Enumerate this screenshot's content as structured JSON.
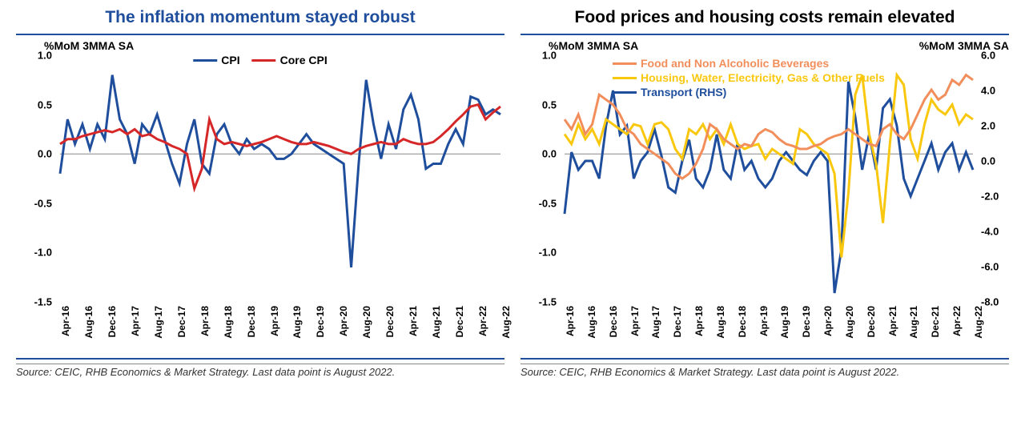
{
  "left": {
    "title": "The inflation momentum stayed robust",
    "title_color": "#1f4e9c",
    "ylabel": "%MoM 3MMA SA",
    "ylim": [
      -1.5,
      1.0
    ],
    "yticks": [
      -1.5,
      -1.0,
      -0.5,
      0.0,
      0.5,
      1.0
    ],
    "xticks": [
      "Apr-16",
      "Aug-16",
      "Dec-16",
      "Apr-17",
      "Aug-17",
      "Dec-17",
      "Apr-18",
      "Aug-18",
      "Dec-18",
      "Apr-19",
      "Aug-19",
      "Dec-19",
      "Apr-20",
      "Aug-20",
      "Dec-20",
      "Apr-21",
      "Aug-21",
      "Dec-21",
      "Apr-22",
      "Aug-22"
    ],
    "legend": [
      {
        "label": "CPI",
        "color": "#1f4e9c"
      },
      {
        "label": "Core CPI",
        "color": "#d62728"
      }
    ],
    "source": "Source: CEIC, RHB Economics & Market Strategy. Last data point is August 2022.",
    "series": {
      "cpi": {
        "color": "#1f4e9c",
        "values": [
          -0.2,
          0.35,
          0.1,
          0.3,
          0.05,
          0.3,
          0.15,
          0.8,
          0.35,
          0.2,
          -0.1,
          0.3,
          0.2,
          0.4,
          0.15,
          -0.1,
          -0.3,
          0.1,
          0.35,
          -0.1,
          -0.2,
          0.2,
          0.3,
          0.1,
          0.0,
          0.15,
          0.05,
          0.1,
          0.05,
          -0.05,
          -0.05,
          0.0,
          0.1,
          0.2,
          0.1,
          0.05,
          0.0,
          -0.05,
          -0.1,
          -1.15,
          -0.1,
          0.75,
          0.3,
          -0.05,
          0.3,
          0.05,
          0.45,
          0.6,
          0.35,
          -0.15,
          -0.1,
          -0.1,
          0.1,
          0.25,
          0.1,
          0.58,
          0.55,
          0.4,
          0.45,
          0.4
        ]
      },
      "core_cpi": {
        "color": "#d62728",
        "values": [
          0.1,
          0.15,
          0.15,
          0.18,
          0.2,
          0.22,
          0.24,
          0.22,
          0.25,
          0.2,
          0.25,
          0.18,
          0.2,
          0.15,
          0.12,
          0.08,
          0.05,
          0.0,
          -0.35,
          -0.15,
          0.35,
          0.15,
          0.1,
          0.12,
          0.1,
          0.08,
          0.1,
          0.12,
          0.15,
          0.18,
          0.15,
          0.12,
          0.1,
          0.1,
          0.12,
          0.1,
          0.08,
          0.05,
          0.02,
          0.0,
          0.05,
          0.08,
          0.1,
          0.12,
          0.1,
          0.1,
          0.15,
          0.12,
          0.1,
          0.1,
          0.12,
          0.18,
          0.25,
          0.33,
          0.4,
          0.48,
          0.5,
          0.35,
          0.42,
          0.48
        ]
      }
    }
  },
  "right": {
    "title": "Food prices and housing costs remain elevated",
    "title_color": "#000000",
    "ylabel_left": "%MoM 3MMA SA",
    "ylabel_right": "%MoM 3MMA SA",
    "ylim_left": [
      -1.5,
      1.0
    ],
    "yticks_left": [
      -1.5,
      -1.0,
      -0.5,
      0.0,
      0.5,
      1.0
    ],
    "ylim_right": [
      -8.0,
      6.0
    ],
    "yticks_right": [
      -8.0,
      -6.0,
      -4.0,
      -2.0,
      0.0,
      2.0,
      4.0,
      6.0
    ],
    "xticks": [
      "Apr-16",
      "Aug-16",
      "Dec-16",
      "Apr-17",
      "Aug-17",
      "Dec-17",
      "Apr-18",
      "Aug-18",
      "Dec-18",
      "Apr-19",
      "Aug-19",
      "Dec-19",
      "Apr-20",
      "Aug-20",
      "Dec-20",
      "Apr-21",
      "Aug-21",
      "Dec-21",
      "Apr-22",
      "Aug-22"
    ],
    "legend": [
      {
        "label": "Food and Non Alcoholic Beverages",
        "color": "#f28e5c"
      },
      {
        "label": "Housing, Water, Electricity, Gas & Other Fuels",
        "color": "#f9c80e"
      },
      {
        "label": "Transport (RHS)",
        "color": "#1f4e9c"
      }
    ],
    "source": "Source: CEIC, RHB Economics & Market Strategy. Last data point is August 2022.",
    "series": {
      "food": {
        "color": "#f28e5c",
        "axis": "left",
        "values": [
          0.35,
          0.25,
          0.4,
          0.2,
          0.3,
          0.6,
          0.55,
          0.5,
          0.4,
          0.25,
          0.2,
          0.1,
          0.05,
          0.0,
          -0.05,
          -0.1,
          -0.2,
          -0.25,
          -0.2,
          -0.1,
          0.05,
          0.3,
          0.25,
          0.15,
          0.1,
          0.05,
          0.1,
          0.08,
          0.2,
          0.25,
          0.22,
          0.15,
          0.1,
          0.08,
          0.05,
          0.05,
          0.08,
          0.1,
          0.15,
          0.18,
          0.2,
          0.25,
          0.2,
          0.15,
          0.1,
          0.08,
          0.25,
          0.3,
          0.2,
          0.15,
          0.25,
          0.4,
          0.55,
          0.65,
          0.55,
          0.6,
          0.75,
          0.7,
          0.8,
          0.75
        ]
      },
      "housing": {
        "color": "#f9c80e",
        "axis": "left",
        "values": [
          0.2,
          0.1,
          0.3,
          0.15,
          0.25,
          0.1,
          0.35,
          0.3,
          0.25,
          0.2,
          0.3,
          0.28,
          0.1,
          0.3,
          0.32,
          0.25,
          0.05,
          -0.05,
          0.25,
          0.2,
          0.3,
          0.15,
          0.25,
          0.1,
          0.3,
          0.1,
          0.05,
          0.08,
          0.1,
          -0.05,
          0.05,
          0.0,
          -0.05,
          -0.1,
          0.25,
          0.2,
          0.1,
          0.05,
          0.0,
          -0.2,
          -1.05,
          -0.4,
          0.6,
          0.8,
          0.2,
          -0.1,
          -0.7,
          0.1,
          0.8,
          0.7,
          0.15,
          -0.05,
          0.3,
          0.55,
          0.45,
          0.4,
          0.5,
          0.3,
          0.4,
          0.35
        ]
      },
      "transport": {
        "color": "#1f4e9c",
        "axis": "right",
        "values": [
          -3.0,
          0.5,
          -0.5,
          0.0,
          0.0,
          -1.0,
          2.0,
          4.0,
          1.5,
          2.0,
          -1.0,
          0.0,
          0.5,
          1.8,
          0.3,
          -1.5,
          -1.8,
          0.0,
          1.2,
          -1.0,
          -1.5,
          -0.5,
          1.5,
          -0.5,
          -1.0,
          1.0,
          -0.5,
          0.0,
          -1.0,
          -1.5,
          -1.0,
          0.0,
          0.5,
          0.0,
          -0.5,
          -0.8,
          0.0,
          0.5,
          0.0,
          -7.5,
          -5.0,
          4.5,
          2.5,
          -0.5,
          1.5,
          -0.5,
          3.0,
          3.5,
          2.0,
          -1.0,
          -2.0,
          -1.0,
          0.0,
          1.0,
          -0.5,
          0.5,
          1.0,
          -0.5,
          0.5,
          -0.5
        ]
      }
    }
  }
}
